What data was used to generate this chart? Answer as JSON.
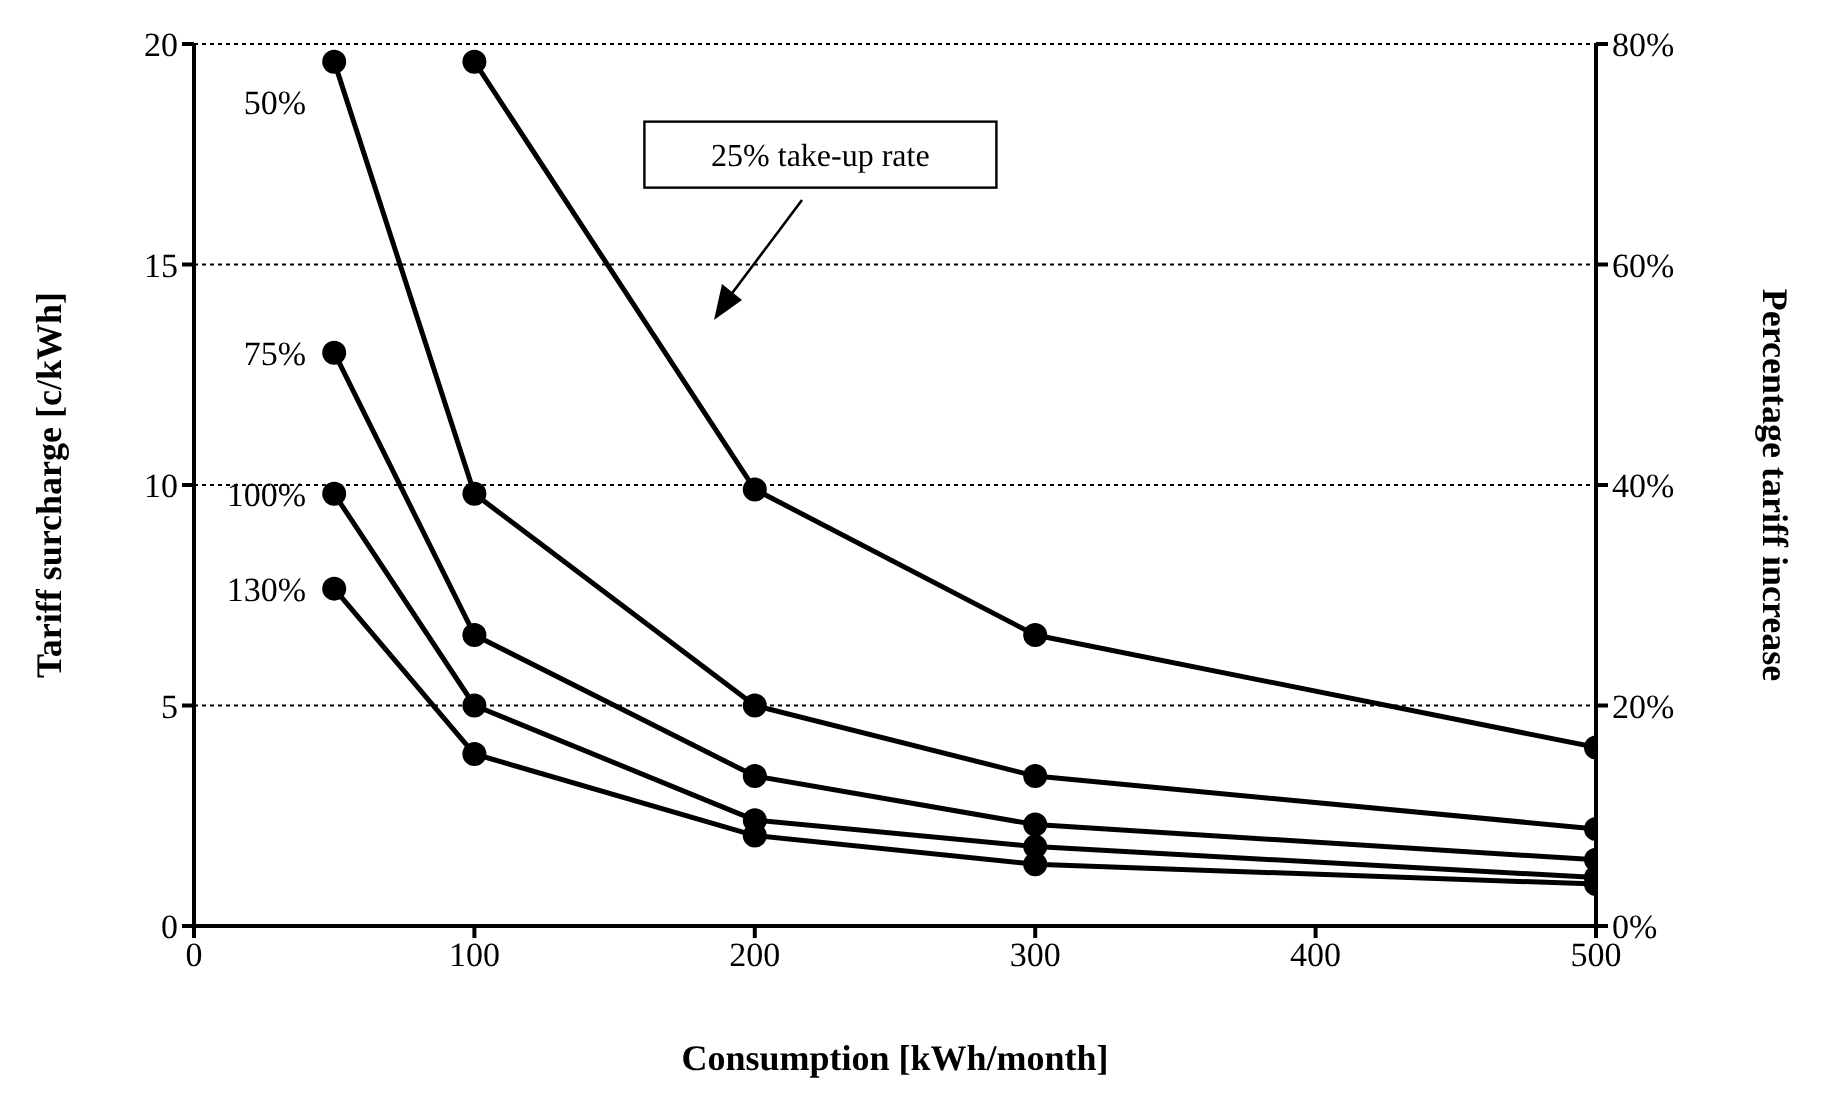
{
  "chart_data": {
    "type": "line",
    "xlabel": "Consumption [kWh/month]",
    "ylabel": "Tariff surcharge [c/kWh]",
    "y2label": "Percentage tariff increase",
    "series": [
      {
        "name": "25% take-up rate",
        "color": "#000000",
        "x": [
          100,
          200,
          300,
          500
        ],
        "values": [
          19.6,
          9.9,
          6.6,
          4.05
        ]
      },
      {
        "name": "50%",
        "color": "#000000",
        "x": [
          50,
          100,
          200,
          300,
          500
        ],
        "values": [
          19.6,
          9.8,
          5.0,
          3.4,
          2.2
        ]
      },
      {
        "name": "75%",
        "color": "#000000",
        "x": [
          50,
          100,
          200,
          300,
          500
        ],
        "values": [
          13.0,
          6.6,
          3.4,
          2.3,
          1.5
        ]
      },
      {
        "name": "100%",
        "color": "#000000",
        "x": [
          50,
          100,
          200,
          300,
          500
        ],
        "values": [
          9.8,
          5.0,
          2.4,
          1.8,
          1.1
        ]
      },
      {
        "name": "130%",
        "color": "#000000",
        "x": [
          50,
          100,
          200,
          300,
          500
        ],
        "values": [
          7.65,
          3.9,
          2.05,
          1.4,
          0.95
        ]
      }
    ],
    "xlim": [
      0,
      500
    ],
    "xticks": [
      0,
      100,
      200,
      300,
      400,
      500
    ],
    "ylim": [
      0,
      20
    ],
    "yticks": [
      0,
      5,
      10,
      15,
      20
    ],
    "y2lim": [
      0,
      80
    ],
    "y2ticks": [
      {
        "value": 0,
        "label": "0%"
      },
      {
        "value": 20,
        "label": "20%"
      },
      {
        "value": 40,
        "label": "40%"
      },
      {
        "value": 60,
        "label": "60%"
      },
      {
        "value": 80,
        "label": "80%"
      }
    ],
    "grid": "y",
    "marker": "circle",
    "line_style": "solid"
  }
}
